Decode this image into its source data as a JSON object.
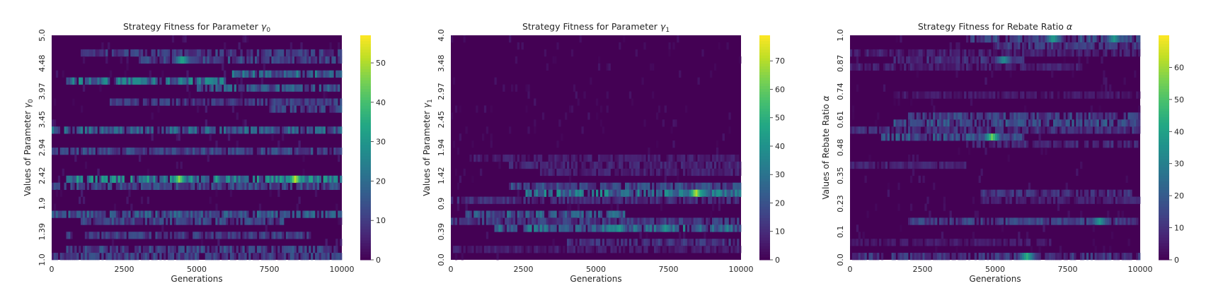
{
  "chart_data": [
    {
      "type": "heatmap",
      "title": "Strategy Fitness for Parameter γ₀",
      "title_main": "Strategy Fitness for Parameter ",
      "title_symbol": "γ",
      "title_sub": "0",
      "xlabel": "Generations",
      "ylabel_main": "Values of Parameter ",
      "ylabel_symbol": "γ",
      "ylabel_sub": "0",
      "xlim": [
        0,
        10000
      ],
      "x_ticks": [
        0,
        2500,
        5000,
        7500,
        10000
      ],
      "y_range": [
        1.0,
        5.0
      ],
      "y_ticks": [
        "1.0",
        "1.39",
        "1.9",
        "2.42",
        "2.94",
        "3.45",
        "3.97",
        "4.48",
        "5.0"
      ],
      "colorbar_max": 57,
      "colorbar_ticks": [
        0,
        10,
        20,
        30,
        40,
        50
      ],
      "colormap": "viridis",
      "n_rows": 32,
      "hot_rows": [
        {
          "row": 2,
          "x0": 1000,
          "x1": 10000,
          "level": 12
        },
        {
          "row": 3,
          "x0": 3000,
          "x1": 10000,
          "level": 14
        },
        {
          "row": 5,
          "x0": 6200,
          "x1": 10000,
          "level": 22
        },
        {
          "row": 6,
          "x0": 500,
          "x1": 6000,
          "level": 24
        },
        {
          "row": 7,
          "x0": 5000,
          "x1": 10000,
          "level": 18
        },
        {
          "row": 9,
          "x0": 2000,
          "x1": 10000,
          "level": 12
        },
        {
          "row": 10,
          "x0": 7500,
          "x1": 10000,
          "level": 14
        },
        {
          "row": 13,
          "x0": 0,
          "x1": 10000,
          "level": 20
        },
        {
          "row": 16,
          "x0": 0,
          "x1": 10000,
          "level": 14
        },
        {
          "row": 20,
          "x0": 500,
          "x1": 10000,
          "level": 28
        },
        {
          "row": 21,
          "x0": 0,
          "x1": 10000,
          "level": 15
        },
        {
          "row": 25,
          "x0": 0,
          "x1": 10000,
          "level": 18
        },
        {
          "row": 26,
          "x0": 1000,
          "x1": 8000,
          "level": 14
        },
        {
          "row": 28,
          "x0": 500,
          "x1": 9000,
          "level": 12
        },
        {
          "row": 30,
          "x0": 500,
          "x1": 10000,
          "level": 14
        },
        {
          "row": 31,
          "x0": 0,
          "x1": 10000,
          "level": 13
        }
      ],
      "peaks": [
        {
          "row": 20,
          "x": 4400,
          "value": 48
        },
        {
          "row": 20,
          "x": 8400,
          "value": 52
        },
        {
          "row": 3,
          "x": 4500,
          "value": 35
        },
        {
          "row": 6,
          "x": 3000,
          "value": 30
        }
      ]
    },
    {
      "type": "heatmap",
      "title": "Strategy Fitness for Parameter γ₁",
      "title_main": "Strategy Fitness for Parameter ",
      "title_symbol": "γ",
      "title_sub": "1",
      "xlabel": "Generations",
      "ylabel_main": "Values of Parameter ",
      "ylabel_symbol": "γ",
      "ylabel_sub": "1",
      "xlim": [
        0,
        10000
      ],
      "x_ticks": [
        0,
        2500,
        5000,
        7500,
        10000
      ],
      "y_range": [
        0.0,
        4.0
      ],
      "y_ticks": [
        "0.0",
        "0.39",
        "0.9",
        "1.42",
        "1.94",
        "2.45",
        "2.97",
        "3.48",
        "4.0"
      ],
      "colorbar_max": 79,
      "colorbar_ticks": [
        0,
        10,
        20,
        30,
        40,
        50,
        60,
        70
      ],
      "colormap": "viridis",
      "n_rows": 32,
      "hot_rows": [
        {
          "row": 17,
          "x0": 500,
          "x1": 10000,
          "level": 8
        },
        {
          "row": 18,
          "x0": 2000,
          "x1": 10000,
          "level": 10
        },
        {
          "row": 19,
          "x0": 3000,
          "x1": 10000,
          "level": 9
        },
        {
          "row": 21,
          "x0": 2000,
          "x1": 10000,
          "level": 20
        },
        {
          "row": 22,
          "x0": 2500,
          "x1": 10000,
          "level": 34
        },
        {
          "row": 23,
          "x0": 0,
          "x1": 10000,
          "level": 12
        },
        {
          "row": 25,
          "x0": 500,
          "x1": 6000,
          "level": 26
        },
        {
          "row": 26,
          "x0": 0,
          "x1": 10000,
          "level": 16
        },
        {
          "row": 27,
          "x0": 1500,
          "x1": 10000,
          "level": 30
        },
        {
          "row": 29,
          "x0": 4000,
          "x1": 10000,
          "level": 14
        },
        {
          "row": 30,
          "x0": 0,
          "x1": 10000,
          "level": 8
        }
      ],
      "peaks": [
        {
          "row": 22,
          "x": 8450,
          "value": 72
        },
        {
          "row": 27,
          "x": 5800,
          "value": 45
        },
        {
          "row": 27,
          "x": 7400,
          "value": 42
        }
      ]
    },
    {
      "type": "heatmap",
      "title": "Strategy Fitness for Rebate Ratio α",
      "title_main": "Strategy Fitness for Rebate Ratio ",
      "title_symbol": "α",
      "title_sub": "",
      "xlabel": "Generations",
      "ylabel_main": "Values of Rebate Ratio ",
      "ylabel_symbol": "α",
      "ylabel_sub": "",
      "xlim": [
        0,
        10000
      ],
      "x_ticks": [
        0,
        2500,
        5000,
        7500,
        10000
      ],
      "y_range": [
        0.0,
        1.0
      ],
      "y_ticks": [
        "0.0",
        "0.1",
        "0.23",
        "0.35",
        "0.48",
        "0.61",
        "0.74",
        "0.87",
        "1.0"
      ],
      "colorbar_max": 70,
      "colorbar_ticks": [
        0,
        10,
        20,
        30,
        40,
        50,
        60
      ],
      "colormap": "viridis",
      "n_rows": 32,
      "hot_rows": [
        {
          "row": 0,
          "x0": 4000,
          "x1": 10000,
          "level": 18
        },
        {
          "row": 1,
          "x0": 5000,
          "x1": 10000,
          "level": 14
        },
        {
          "row": 2,
          "x0": 0,
          "x1": 10000,
          "level": 8
        },
        {
          "row": 3,
          "x0": 1500,
          "x1": 6000,
          "level": 12
        },
        {
          "row": 4,
          "x0": 0,
          "x1": 8000,
          "level": 8
        },
        {
          "row": 8,
          "x0": 1500,
          "x1": 10000,
          "level": 6
        },
        {
          "row": 11,
          "x0": 2000,
          "x1": 10000,
          "level": 16
        },
        {
          "row": 12,
          "x0": 1500,
          "x1": 10000,
          "level": 20
        },
        {
          "row": 13,
          "x0": 0,
          "x1": 10000,
          "level": 12
        },
        {
          "row": 14,
          "x0": 1000,
          "x1": 6000,
          "level": 20
        },
        {
          "row": 15,
          "x0": 4000,
          "x1": 10000,
          "level": 10
        },
        {
          "row": 18,
          "x0": 0,
          "x1": 4000,
          "level": 8
        },
        {
          "row": 22,
          "x0": 4500,
          "x1": 10000,
          "level": 12
        },
        {
          "row": 23,
          "x0": 4500,
          "x1": 10000,
          "level": 8
        },
        {
          "row": 26,
          "x0": 2000,
          "x1": 10000,
          "level": 16
        },
        {
          "row": 29,
          "x0": 0,
          "x1": 7000,
          "level": 6
        },
        {
          "row": 31,
          "x0": 0,
          "x1": 10000,
          "level": 14
        }
      ],
      "peaks": [
        {
          "row": 14,
          "x": 4900,
          "value": 55
        },
        {
          "row": 31,
          "x": 6100,
          "value": 45
        },
        {
          "row": 26,
          "x": 8600,
          "value": 38
        },
        {
          "row": 0,
          "x": 7000,
          "value": 40
        },
        {
          "row": 0,
          "x": 9100,
          "value": 38
        },
        {
          "row": 3,
          "x": 5300,
          "value": 35
        }
      ]
    }
  ]
}
